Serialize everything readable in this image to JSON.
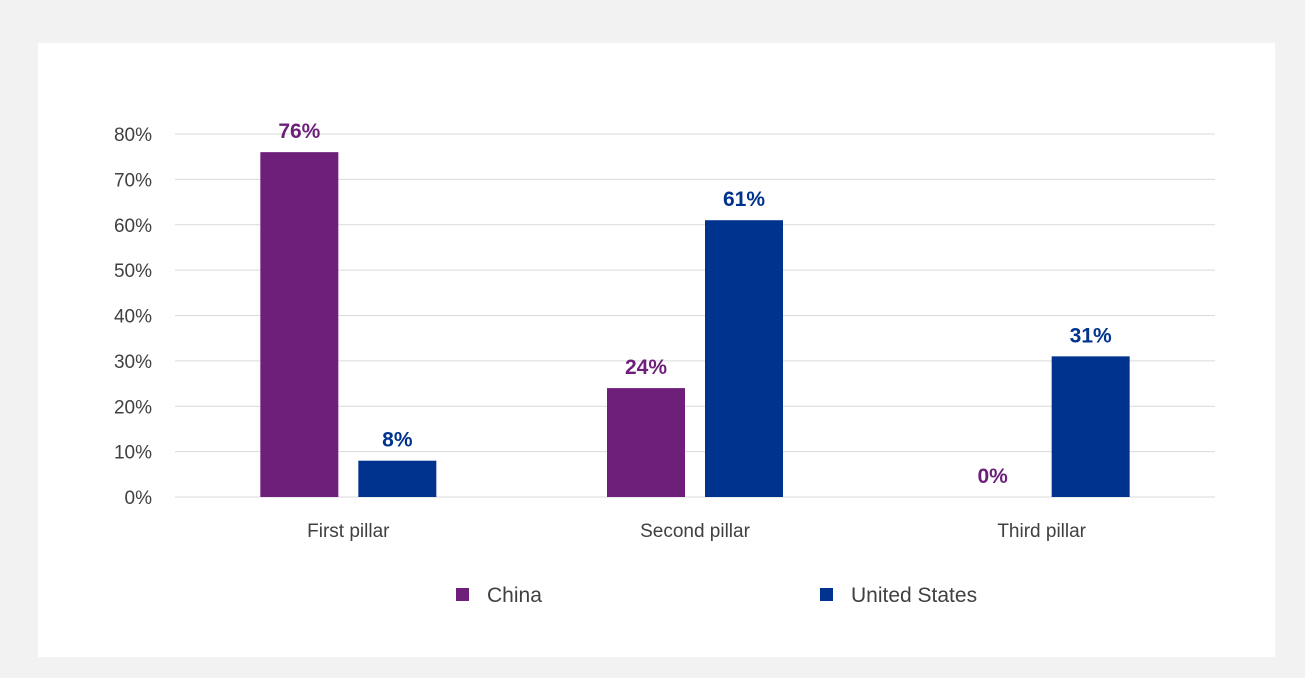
{
  "chart_data": {
    "type": "bar",
    "categories": [
      "First pillar",
      "Second pillar",
      "Third pillar"
    ],
    "series": [
      {
        "name": "China",
        "values": [
          76,
          24,
          0
        ],
        "labels": [
          "76%",
          "24%",
          "0%"
        ],
        "color": "#6d1f7a"
      },
      {
        "name": "United States",
        "values": [
          8,
          61,
          31
        ],
        "labels": [
          "8%",
          "61%",
          "31%"
        ],
        "color": "#00338d"
      }
    ],
    "y_ticks": [
      0,
      10,
      20,
      30,
      40,
      50,
      60,
      70,
      80
    ],
    "y_tick_labels": [
      "0%",
      "10%",
      "20%",
      "30%",
      "40%",
      "50%",
      "60%",
      "70%",
      "80%"
    ],
    "ylim": [
      0,
      80
    ],
    "grid": true,
    "gridline_color": "#d9d9d9",
    "legend_position": "bottom",
    "title": "",
    "xlabel": "",
    "ylabel": ""
  }
}
